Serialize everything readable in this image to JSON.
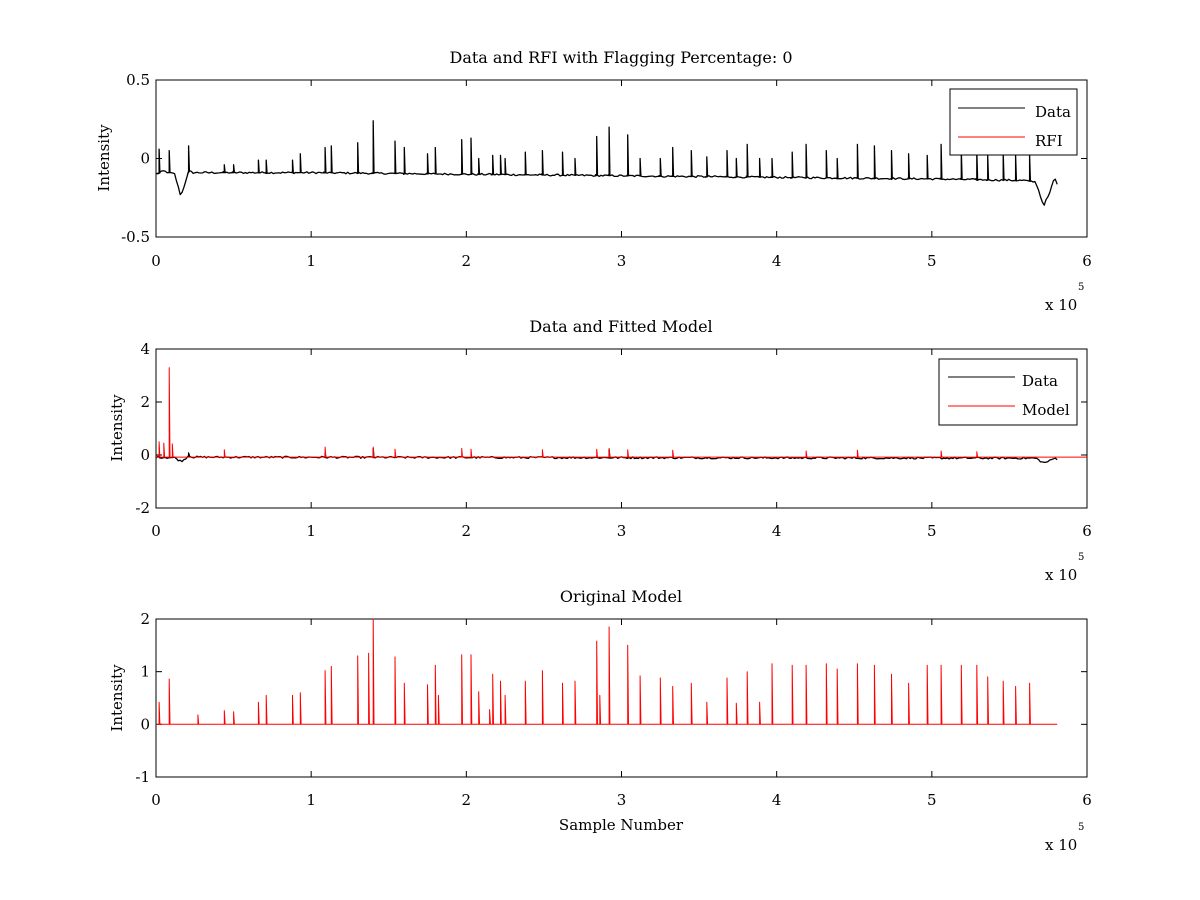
{
  "chart_data": [
    {
      "type": "line",
      "title": "Data and RFI with Flagging Percentage: 0",
      "ylabel": "Intensity",
      "xlabel": "",
      "xlim": [
        0,
        600000
      ],
      "ylim": [
        -0.5,
        0.5
      ],
      "xticks": [
        "0",
        "1",
        "2",
        "3",
        "4",
        "5",
        "6"
      ],
      "yticks": [
        "0.5",
        "0",
        "-0.5"
      ],
      "x_multiplier": {
        "base": "x 10",
        "exponent": "5"
      },
      "legend": {
        "placement": "top-right",
        "entries": [
          "Data",
          "RFI"
        ]
      },
      "series": [
        {
          "name": "Data",
          "color": "#000000",
          "baseline_points": [
            [
              0,
              -0.1
            ],
            [
              5000,
              -0.08
            ],
            [
              12000,
              -0.1
            ],
            [
              16000,
              -0.24
            ],
            [
              18000,
              -0.18
            ],
            [
              21000,
              -0.08
            ],
            [
              24000,
              -0.09
            ],
            [
              100000,
              -0.09
            ],
            [
              200000,
              -0.1
            ],
            [
              300000,
              -0.11
            ],
            [
              400000,
              -0.12
            ],
            [
              500000,
              -0.13
            ],
            [
              560000,
              -0.14
            ],
            [
              567000,
              -0.15
            ],
            [
              572000,
              -0.3
            ],
            [
              576000,
              -0.22
            ],
            [
              579000,
              -0.12
            ],
            [
              581000,
              -0.17
            ]
          ],
          "spikes": [
            [
              2000,
              0.06
            ],
            [
              8500,
              0.05
            ],
            [
              21000,
              0.08
            ],
            [
              44000,
              -0.04
            ],
            [
              50000,
              -0.04
            ],
            [
              66000,
              -0.01
            ],
            [
              71000,
              -0.01
            ],
            [
              88000,
              -0.01
            ],
            [
              93000,
              0.03
            ],
            [
              109000,
              0.07
            ],
            [
              113000,
              0.08
            ],
            [
              130000,
              0.1
            ],
            [
              140000,
              0.24
            ],
            [
              154000,
              0.11
            ],
            [
              160000,
              0.07
            ],
            [
              175000,
              0.03
            ],
            [
              180000,
              0.07
            ],
            [
              197000,
              0.12
            ],
            [
              203000,
              0.13
            ],
            [
              208000,
              0.0
            ],
            [
              217000,
              0.02
            ],
            [
              222000,
              0.02
            ],
            [
              225000,
              0.0
            ],
            [
              238000,
              0.04
            ],
            [
              249000,
              0.05
            ],
            [
              262000,
              0.04
            ],
            [
              270000,
              0.0
            ],
            [
              284000,
              0.14
            ],
            [
              292000,
              0.2
            ],
            [
              304000,
              0.15
            ],
            [
              312000,
              0.0
            ],
            [
              325000,
              0.0
            ],
            [
              333000,
              0.07
            ],
            [
              345000,
              0.05
            ],
            [
              355000,
              0.01
            ],
            [
              368000,
              0.05
            ],
            [
              374000,
              0.0
            ],
            [
              381000,
              0.09
            ],
            [
              389000,
              0.0
            ],
            [
              397000,
              0.0
            ],
            [
              410000,
              0.04
            ],
            [
              419000,
              0.09
            ],
            [
              432000,
              0.05
            ],
            [
              439000,
              0.0
            ],
            [
              452000,
              0.09
            ],
            [
              463000,
              0.08
            ],
            [
              474000,
              0.05
            ],
            [
              485000,
              0.03
            ],
            [
              497000,
              0.02
            ],
            [
              506000,
              0.09
            ],
            [
              519000,
              0.05
            ],
            [
              529000,
              0.05
            ],
            [
              536000,
              0.02
            ],
            [
              546000,
              0.04
            ],
            [
              554000,
              0.02
            ],
            [
              563000,
              0.02
            ]
          ]
        },
        {
          "name": "RFI",
          "color": "#ff0000",
          "values": []
        }
      ]
    },
    {
      "type": "line",
      "title": "Data and Fitted Model",
      "ylabel": "Intensity",
      "xlabel": "",
      "xlim": [
        0,
        600000
      ],
      "ylim": [
        -2,
        4
      ],
      "xticks": [
        "0",
        "1",
        "2",
        "3",
        "4",
        "5",
        "6"
      ],
      "yticks": [
        "4",
        "2",
        "0",
        "-2"
      ],
      "x_multiplier": {
        "base": "x 10",
        "exponent": "5"
      },
      "legend": {
        "placement": "top-right",
        "entries": [
          "Data",
          "Model"
        ]
      },
      "series": [
        {
          "name": "Data",
          "color": "#000000",
          "baseline_points": [
            [
              0,
              -0.08
            ],
            [
              12000,
              -0.1
            ],
            [
              16000,
              -0.24
            ],
            [
              18000,
              -0.18
            ],
            [
              21000,
              -0.02
            ],
            [
              24000,
              -0.08
            ],
            [
              300000,
              -0.1
            ],
            [
              567000,
              -0.12
            ],
            [
              572000,
              -0.3
            ],
            [
              576000,
              -0.22
            ],
            [
              579000,
              -0.12
            ],
            [
              581000,
              -0.15
            ]
          ],
          "spikes": [
            [
              21000,
              0.08
            ],
            [
              109000,
              0.07
            ],
            [
              140000,
              0.24
            ],
            [
              292000,
              0.2
            ]
          ]
        },
        {
          "name": "Model",
          "color": "#ff0000",
          "baseline_points": [
            [
              0,
              -0.08
            ],
            [
              600000,
              -0.08
            ]
          ],
          "spikes": [
            [
              2000,
              0.5
            ],
            [
              5000,
              0.45
            ],
            [
              8500,
              3.3
            ],
            [
              10500,
              0.42
            ],
            [
              44000,
              0.2
            ],
            [
              109000,
              0.3
            ],
            [
              140000,
              0.3
            ],
            [
              154000,
              0.22
            ],
            [
              197000,
              0.25
            ],
            [
              203000,
              0.22
            ],
            [
              249000,
              0.2
            ],
            [
              284000,
              0.22
            ],
            [
              292000,
              0.25
            ],
            [
              304000,
              0.2
            ],
            [
              333000,
              0.18
            ],
            [
              419000,
              0.15
            ],
            [
              452000,
              0.18
            ],
            [
              506000,
              0.15
            ],
            [
              529000,
              0.12
            ]
          ]
        }
      ]
    },
    {
      "type": "line",
      "title": "Original Model",
      "ylabel": "Intensity",
      "xlabel": "Sample Number",
      "xlim": [
        0,
        600000
      ],
      "ylim": [
        -1,
        2
      ],
      "xticks": [
        "0",
        "1",
        "2",
        "3",
        "4",
        "5",
        "6"
      ],
      "yticks": [
        "2",
        "1",
        "0",
        "-1"
      ],
      "x_multiplier": {
        "base": "x 10",
        "exponent": "5"
      },
      "series": [
        {
          "name": "",
          "color": "#ff0000",
          "baseline_points": [
            [
              0,
              0
            ],
            [
              581000,
              0
            ]
          ],
          "spikes": [
            [
              2000,
              0.42
            ],
            [
              8500,
              0.86
            ],
            [
              27000,
              0.18
            ],
            [
              44000,
              0.26
            ],
            [
              50000,
              0.24
            ],
            [
              66000,
              0.42
            ],
            [
              71000,
              0.55
            ],
            [
              88000,
              0.55
            ],
            [
              93000,
              0.6
            ],
            [
              109000,
              1.02
            ],
            [
              113000,
              1.1
            ],
            [
              130000,
              1.3
            ],
            [
              137000,
              1.35
            ],
            [
              140000,
              2.0
            ],
            [
              154000,
              1.28
            ],
            [
              160000,
              0.78
            ],
            [
              175000,
              0.75
            ],
            [
              180000,
              1.12
            ],
            [
              182000,
              0.55
            ],
            [
              197000,
              1.32
            ],
            [
              203000,
              1.32
            ],
            [
              208000,
              0.62
            ],
            [
              215000,
              0.28
            ],
            [
              217000,
              0.95
            ],
            [
              222000,
              0.82
            ],
            [
              225000,
              0.55
            ],
            [
              238000,
              0.82
            ],
            [
              249000,
              1.02
            ],
            [
              262000,
              0.78
            ],
            [
              270000,
              0.82
            ],
            [
              284000,
              1.58
            ],
            [
              286000,
              0.55
            ],
            [
              292000,
              1.85
            ],
            [
              304000,
              1.5
            ],
            [
              312000,
              0.92
            ],
            [
              325000,
              0.88
            ],
            [
              333000,
              0.72
            ],
            [
              345000,
              0.78
            ],
            [
              355000,
              0.42
            ],
            [
              368000,
              0.88
            ],
            [
              374000,
              0.4
            ],
            [
              381000,
              1.0
            ],
            [
              389000,
              0.42
            ],
            [
              397000,
              1.15
            ],
            [
              410000,
              1.12
            ],
            [
              419000,
              1.12
            ],
            [
              432000,
              1.15
            ],
            [
              439000,
              1.05
            ],
            [
              452000,
              1.15
            ],
            [
              463000,
              1.12
            ],
            [
              474000,
              0.95
            ],
            [
              485000,
              0.78
            ],
            [
              497000,
              1.12
            ],
            [
              506000,
              1.12
            ],
            [
              519000,
              1.12
            ],
            [
              529000,
              1.12
            ],
            [
              536000,
              0.9
            ],
            [
              546000,
              0.82
            ],
            [
              554000,
              0.72
            ],
            [
              563000,
              0.78
            ]
          ]
        }
      ]
    }
  ]
}
